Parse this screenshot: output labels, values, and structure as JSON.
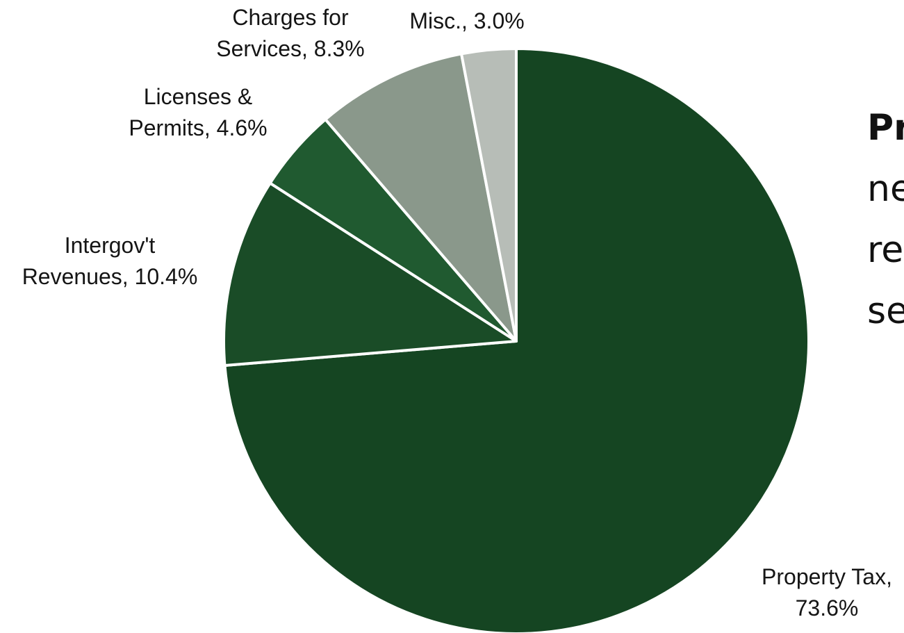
{
  "chart_data": {
    "type": "pie",
    "start_angle_deg": 0,
    "direction": "clockwise",
    "slices": [
      {
        "label_lines": [
          "Property Tax,",
          "73.6%"
        ],
        "name": "Property Tax",
        "value": 73.6,
        "color": "#154522"
      },
      {
        "label_lines": [
          "Intergov't",
          "Revenues, 10.4%"
        ],
        "name": "Intergov't Revenues",
        "value": 10.4,
        "color": "#1a4c27"
      },
      {
        "label_lines": [
          "Licenses &",
          "Permits, 4.6%"
        ],
        "name": "Licenses & Permits",
        "value": 4.6,
        "color": "#205a30"
      },
      {
        "label_lines": [
          "Charges for",
          "Services, 8.3%"
        ],
        "name": "Charges for Services",
        "value": 8.3,
        "color": "#8a988b"
      },
      {
        "label_lines": [
          "Misc., 3.0%"
        ],
        "name": "Misc.",
        "value": 3.0,
        "color": "#b7bdb7"
      }
    ]
  },
  "side_text": {
    "line1": "Pr",
    "line2": "ne",
    "line3": "re",
    "line4": "se"
  }
}
